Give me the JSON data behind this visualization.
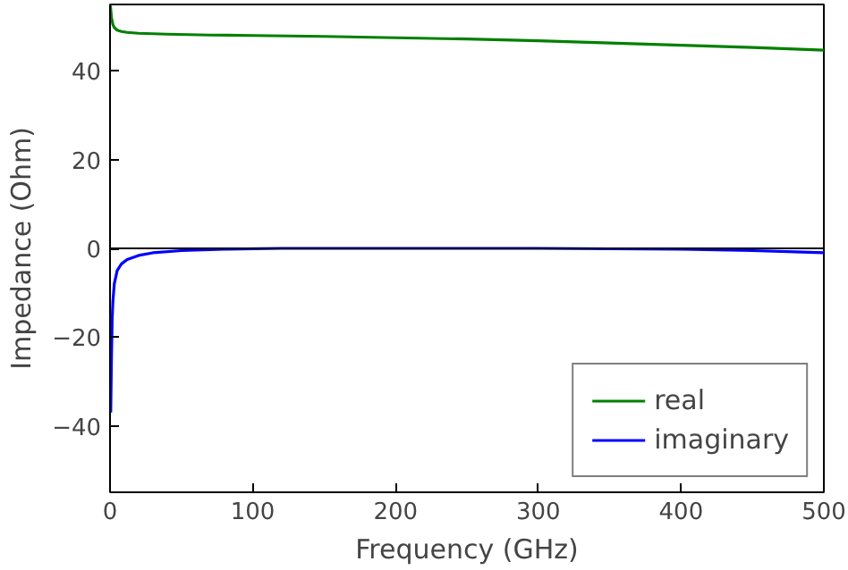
{
  "chart_data": {
    "type": "line",
    "xlabel": "Frequency (GHz)",
    "ylabel": "Impedance (Ohm)",
    "xlim": [
      0,
      500
    ],
    "ylim": [
      -55,
      55
    ],
    "xticks": [
      0,
      100,
      200,
      300,
      400,
      500
    ],
    "yticks": [
      -40,
      -20,
      0,
      20,
      40
    ],
    "grid": false,
    "legend": "bottom right",
    "line_style": "solid",
    "marker": "none",
    "ref_lines": [
      {
        "axis": "y",
        "value": 0,
        "color": "#000000"
      }
    ],
    "series": [
      {
        "name": "real",
        "color": "#008000",
        "x": [
          0.2,
          1,
          2,
          3,
          5,
          8,
          12,
          20,
          40,
          70,
          100,
          150,
          200,
          250,
          300,
          350,
          400,
          450,
          500
        ],
        "values": [
          55,
          52,
          50.5,
          49.8,
          49.2,
          48.9,
          48.7,
          48.5,
          48.3,
          48.1,
          48,
          47.8,
          47.5,
          47.2,
          46.8,
          46.3,
          45.8,
          45.3,
          44.7
        ]
      },
      {
        "name": "imaginary",
        "color": "#0000ff",
        "x": [
          0.5,
          1,
          1.5,
          2,
          3,
          5,
          8,
          12,
          20,
          30,
          50,
          80,
          120,
          200,
          300,
          400,
          450,
          480,
          500
        ],
        "values": [
          -37,
          -25,
          -16,
          -12,
          -8,
          -5,
          -3.5,
          -2.5,
          -1.6,
          -1,
          -0.5,
          -0.2,
          0,
          0,
          0,
          -0.2,
          -0.5,
          -0.8,
          -1
        ]
      }
    ]
  }
}
